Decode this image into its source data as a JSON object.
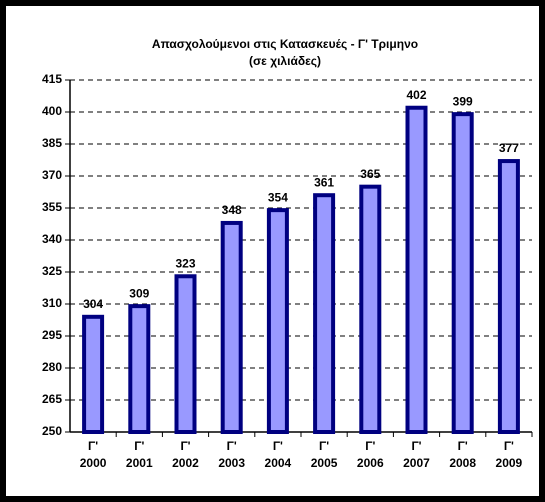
{
  "chart_data": {
    "type": "bar",
    "title": "Απασχολούμενοι στις Κατασκευές - Γ' Τριμηνο",
    "subtitle": "(σε χιλιάδες)",
    "categories": [
      "Γ' 2000",
      "Γ' 2001",
      "Γ' 2002",
      "Γ' 2003",
      "Γ' 2004",
      "Γ' 2005",
      "Γ' 2006",
      "Γ' 2007",
      "Γ' 2008",
      "Γ' 2009"
    ],
    "values": [
      304,
      309,
      323,
      348,
      354,
      361,
      365,
      402,
      399,
      377
    ],
    "color": "#9999ff",
    "edge_color": "#000080",
    "ylim": [
      250,
      415
    ],
    "yticks": [
      250,
      265,
      280,
      295,
      310,
      325,
      340,
      355,
      370,
      385,
      400,
      415
    ],
    "grid": true
  }
}
